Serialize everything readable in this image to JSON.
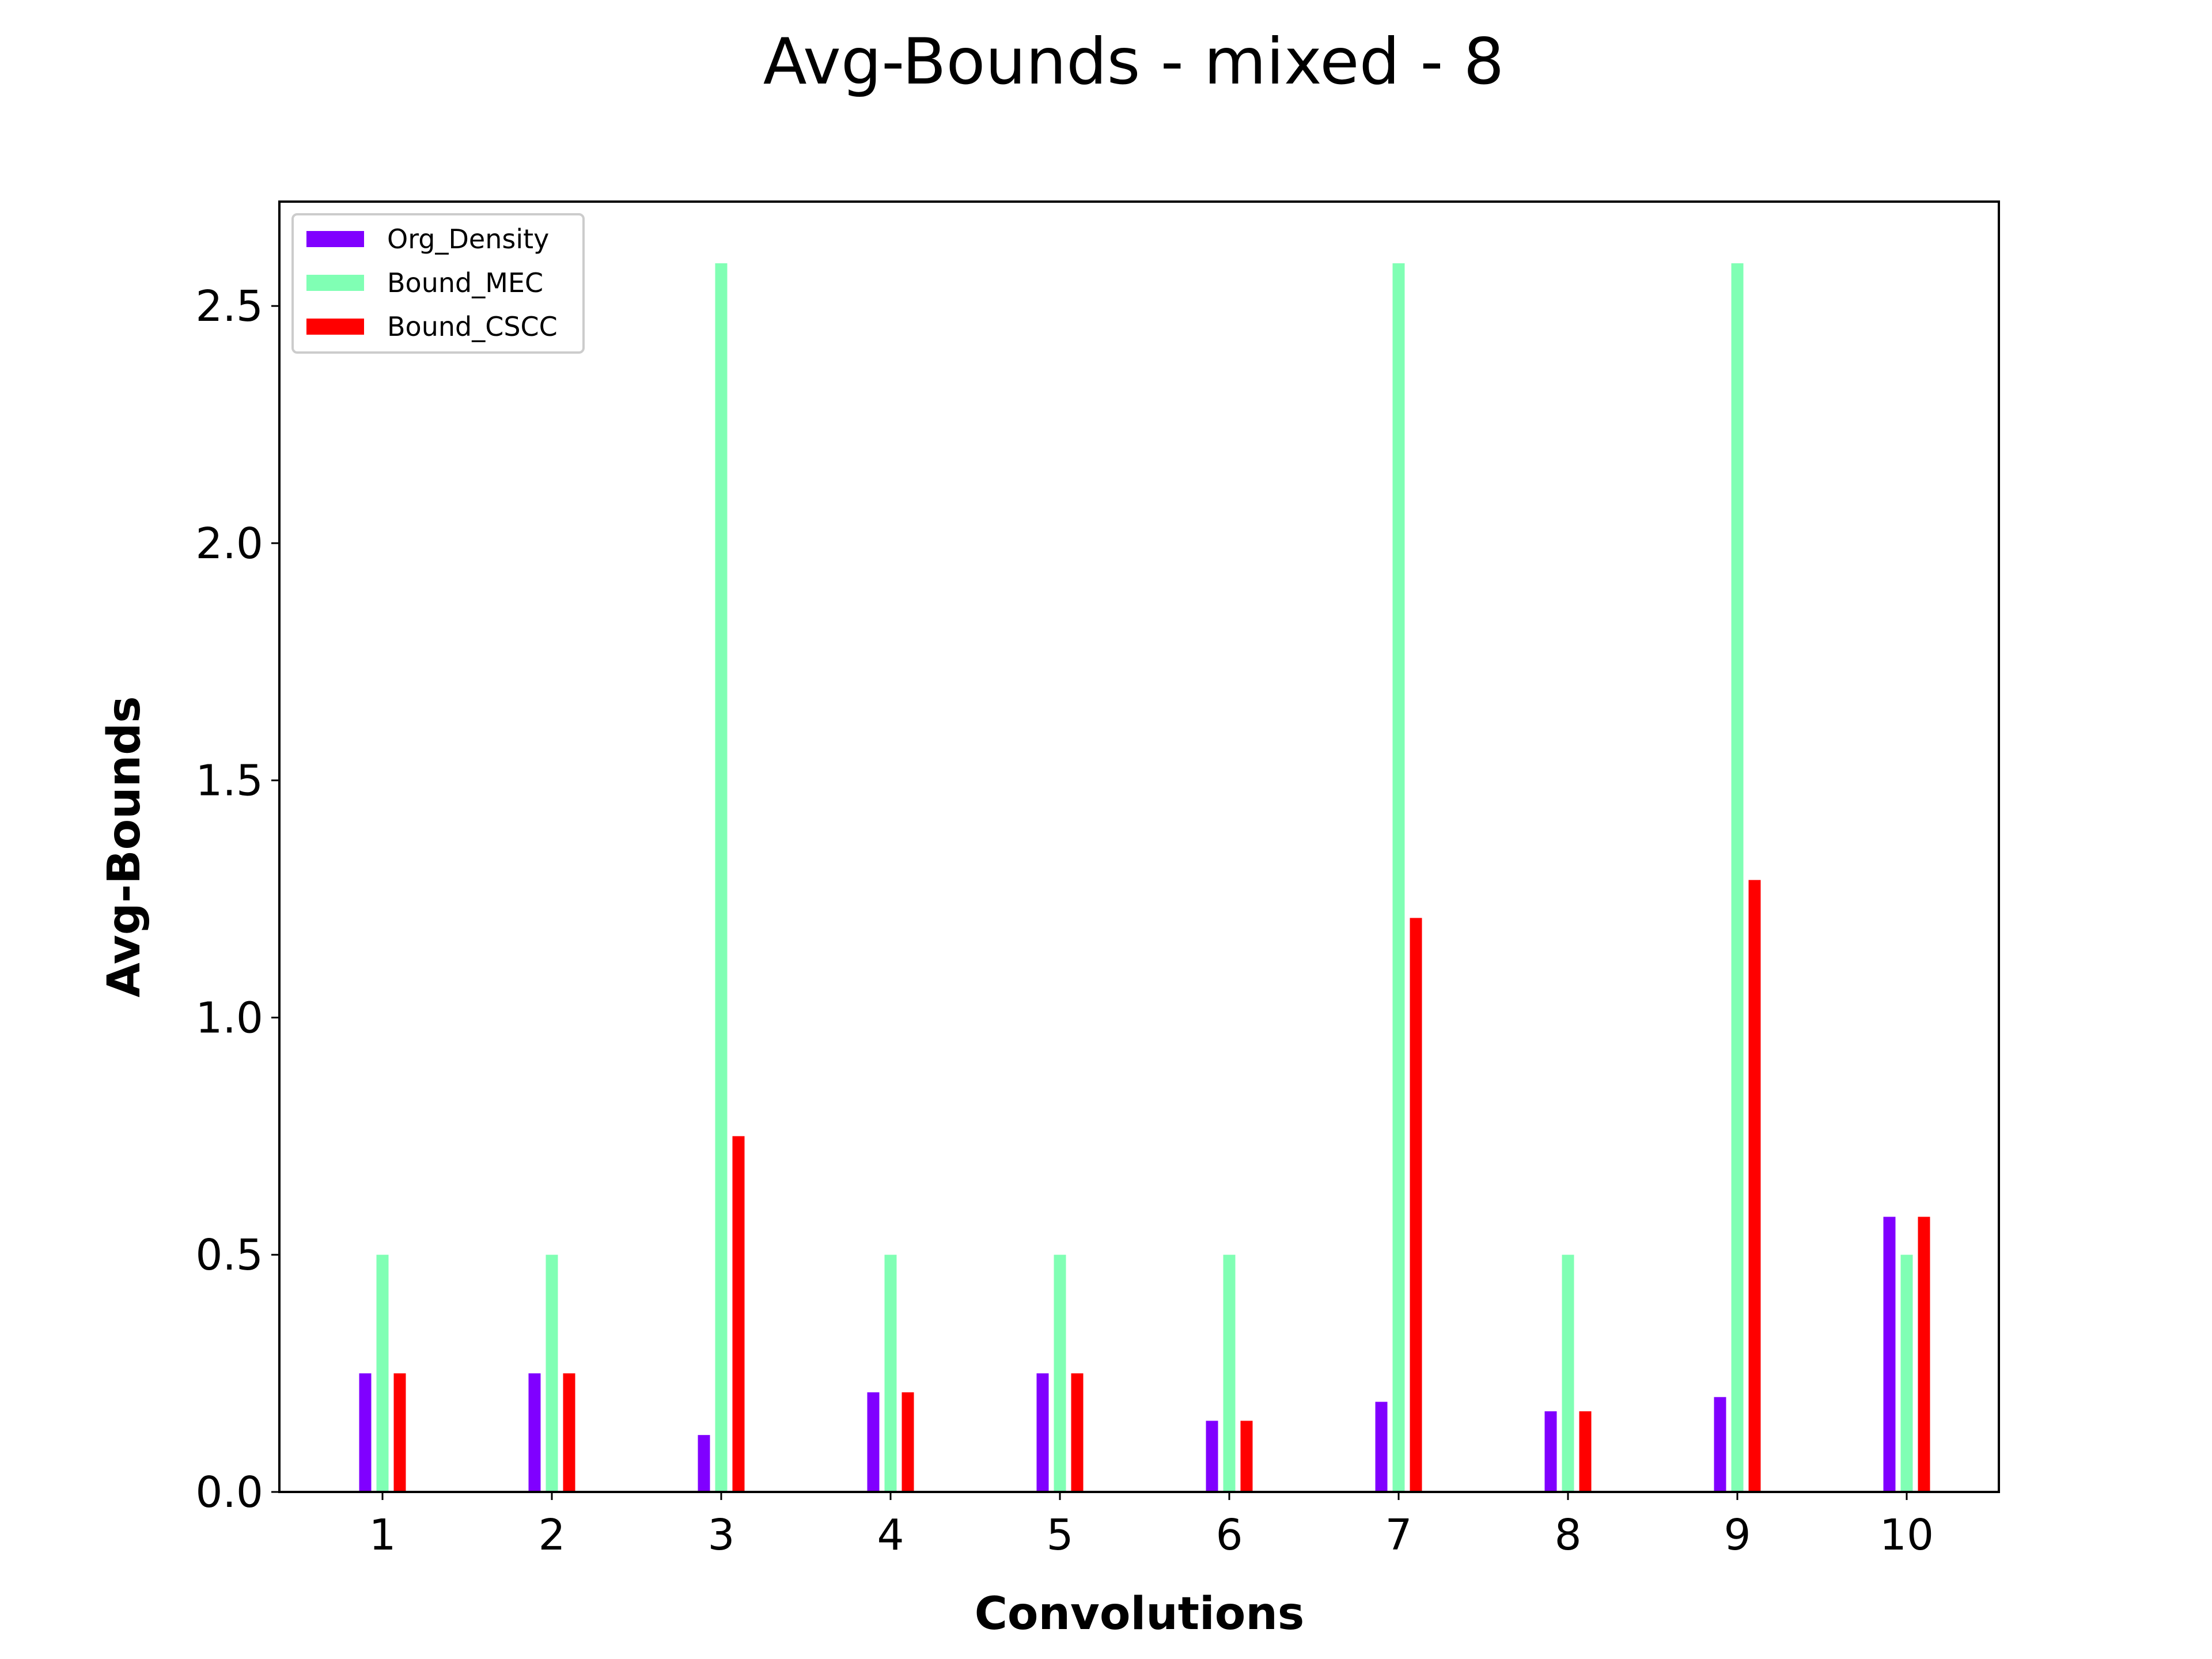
{
  "chart_data": {
    "type": "bar",
    "title": "Avg-Bounds - mixed - 8",
    "xlabel": "Convolutions",
    "ylabel": "Avg-Bounds",
    "categories": [
      "1",
      "2",
      "3",
      "4",
      "5",
      "6",
      "7",
      "8",
      "9",
      "10"
    ],
    "series": [
      {
        "name": "Org_Density",
        "color": "#8000ff",
        "values": [
          0.25,
          0.25,
          0.12,
          0.21,
          0.25,
          0.15,
          0.19,
          0.17,
          0.2,
          0.58
        ]
      },
      {
        "name": "Bound_MEC",
        "color": "#80ffb4",
        "values": [
          0.5,
          0.5,
          2.59,
          0.5,
          0.5,
          0.5,
          2.59,
          0.5,
          2.59,
          0.5
        ]
      },
      {
        "name": "Bound_CSCC",
        "color": "#ff0000",
        "values": [
          0.25,
          0.25,
          0.75,
          0.21,
          0.25,
          0.15,
          1.21,
          0.17,
          1.29,
          0.58
        ]
      }
    ],
    "ylim": [
      0,
      2.72
    ],
    "yticks": [
      "0.0",
      "0.5",
      "1.0",
      "1.5",
      "2.0",
      "2.5"
    ],
    "grid": false,
    "legend": "top-left"
  }
}
